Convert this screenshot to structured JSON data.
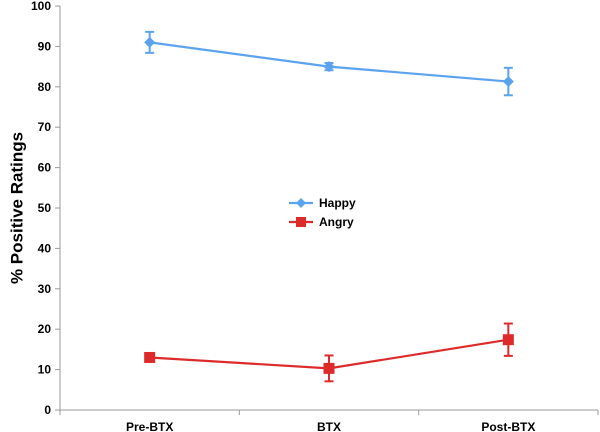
{
  "chart_data": {
    "type": "line",
    "title": "",
    "xlabel": "",
    "ylabel": "% Positive Ratings",
    "categories": [
      "Pre-BTX",
      "BTX",
      "Post-BTX"
    ],
    "ylim": [
      0,
      100
    ],
    "yticks": [
      0,
      10,
      20,
      30,
      40,
      50,
      60,
      70,
      80,
      90,
      100
    ],
    "grid": false,
    "legend": "center",
    "series": [
      {
        "name": "Happy",
        "marker": "diamond",
        "color": "#5ba3ee",
        "values": [
          91,
          85,
          81.3
        ],
        "errors": [
          2.6,
          0.9,
          3.4
        ]
      },
      {
        "name": "Angry",
        "marker": "square",
        "color": "#dd2a2a",
        "values": [
          13,
          10.3,
          17.4
        ],
        "errors": [
          0.4,
          3.2,
          4.0
        ]
      }
    ]
  }
}
